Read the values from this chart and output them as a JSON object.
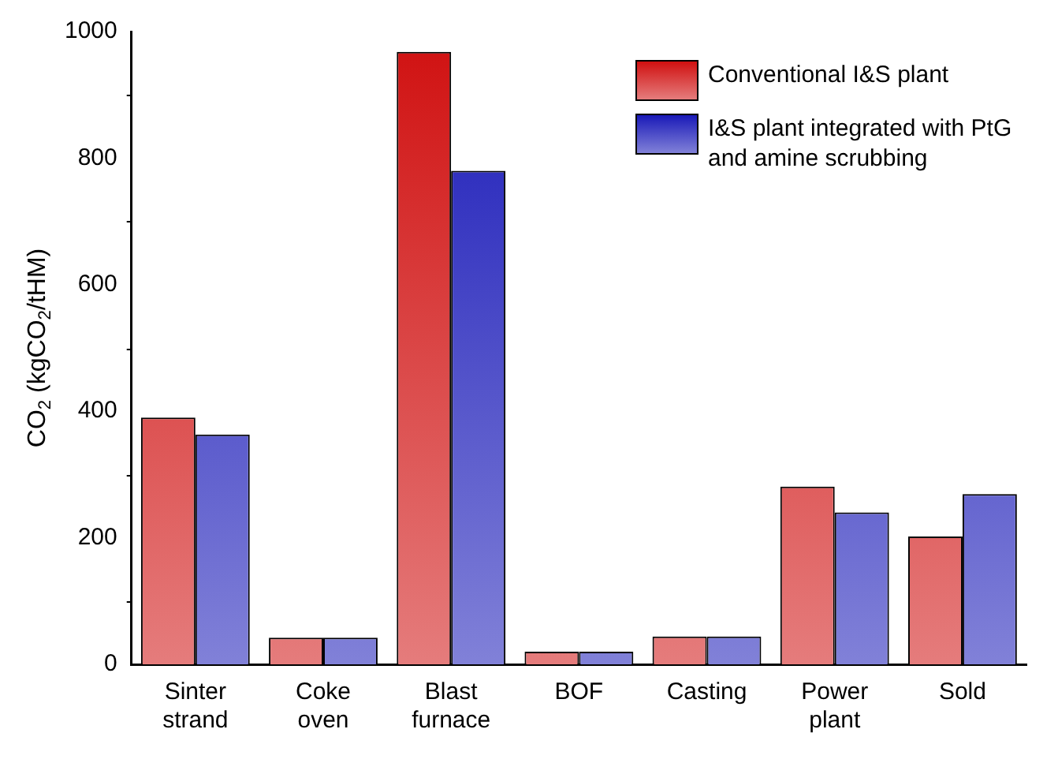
{
  "chart_data": {
    "type": "bar",
    "ylabel": "CO$_{2}$ (kgCO$_{2}$/tHM)",
    "categories": [
      "Sinter strand",
      "Coke oven",
      "Blast furnace",
      "BOF",
      "Casting",
      "Power plant",
      "Sold"
    ],
    "series": [
      {
        "name": "Conventional I&S plant",
        "color": "#d01010",
        "values": [
          390,
          42,
          968,
          20,
          44,
          281,
          202
        ]
      },
      {
        "name": "I&S plant integrated with PtG and amine scrubbing",
        "color": "#1a1ab8",
        "values": [
          363,
          42,
          780,
          20,
          44,
          240,
          269
        ]
      }
    ],
    "ylim": [
      0,
      1000
    ],
    "yticks": [
      0,
      200,
      400,
      600,
      800,
      1000
    ],
    "grid": false,
    "legend": "top right"
  }
}
